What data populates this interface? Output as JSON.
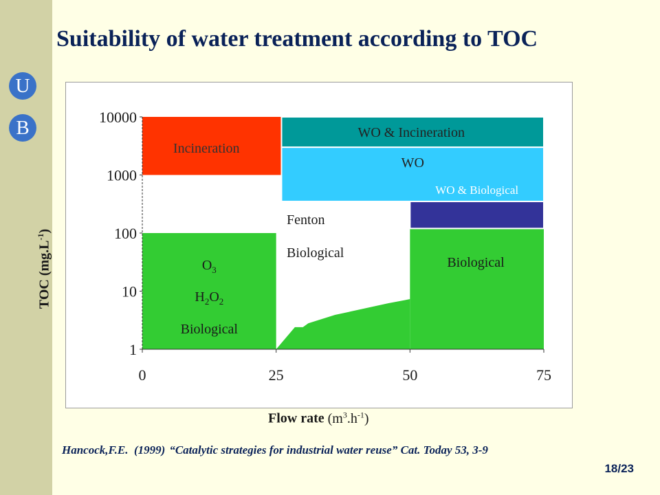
{
  "slide": {
    "title": "Suitability of water treatment according to TOC",
    "logo_letters": [
      "U",
      "B"
    ],
    "citation_prefix": "Hancock,F.E.  (1999)",
    "citation_body": "“Catalytic strategies for industrial water reuse” Cat. Today 53, 3-9",
    "page_number": "18/23"
  },
  "colors": {
    "background": "#FFFFE6",
    "sidebar": "#D2D2A6",
    "title": "#0A2258",
    "incineration": "#FF3300",
    "wo_incineration": "#009999",
    "wo": "#33CCFF",
    "wo_biological": "#333399",
    "biological": "#33CC33"
  },
  "chart_data": {
    "type": "region-map",
    "title": "",
    "xlabel": "Flow rate",
    "xlabel_units": "(m3.h-1)",
    "ylabel": "TOC (mg.L-1)",
    "x_scale": "linear",
    "y_scale": "log10",
    "xlim": [
      0,
      75
    ],
    "ylim": [
      1,
      10000
    ],
    "x_ticks": [
      0,
      25,
      50,
      75
    ],
    "x_tick_labels": [
      "0",
      "25",
      "50",
      "75"
    ],
    "y_ticks": [
      1,
      10,
      100,
      1000,
      10000
    ],
    "y_tick_labels": [
      "1",
      "10",
      "100",
      "1000",
      "10000"
    ],
    "regions": [
      {
        "name": "Incineration",
        "color": "#FF3300",
        "x": [
          0,
          26
        ],
        "y": [
          1000,
          10000
        ]
      },
      {
        "name": "WO & Incineration",
        "color": "#009999",
        "x": [
          26,
          75
        ],
        "y": [
          3000,
          10000
        ]
      },
      {
        "name": "WO",
        "color": "#33CCFF",
        "x": [
          26,
          75
        ],
        "y": [
          350,
          3000
        ]
      },
      {
        "name": "WO & Biological",
        "color": "#333399",
        "x": [
          50,
          75
        ],
        "y": [
          120,
          350
        ]
      },
      {
        "name": "Biological",
        "color": "#33CC33",
        "x": [
          50,
          75
        ],
        "y": [
          1,
          120
        ]
      },
      {
        "name": "O3 / H2O2 / Biological",
        "color": "#33CC33",
        "x": [
          0,
          25
        ],
        "y": [
          1,
          100
        ]
      }
    ],
    "transition_region": {
      "name": "Fenton / Biological",
      "color": "#33CC33",
      "points": [
        [
          25,
          1
        ],
        [
          28.5,
          2.4
        ],
        [
          30,
          2.4
        ],
        [
          31,
          2.8
        ],
        [
          36,
          3.9
        ],
        [
          46,
          6.2
        ],
        [
          49,
          7
        ],
        [
          50,
          7.3
        ],
        [
          50,
          1
        ]
      ]
    },
    "labels": {
      "incineration": "Incineration",
      "wo_incineration": "WO & Incineration",
      "wo": "WO",
      "wo_biological": "WO & Biological",
      "biological_right": "Biological",
      "fenton": "Fenton",
      "fenton_biological": "Biological",
      "o3_base": "O",
      "o3_sub": "3",
      "h2o2_h": "H",
      "h2o2_sub1": "2",
      "h2o2_o": "O",
      "h2o2_sub2": "2",
      "left_biological": "Biological"
    }
  }
}
